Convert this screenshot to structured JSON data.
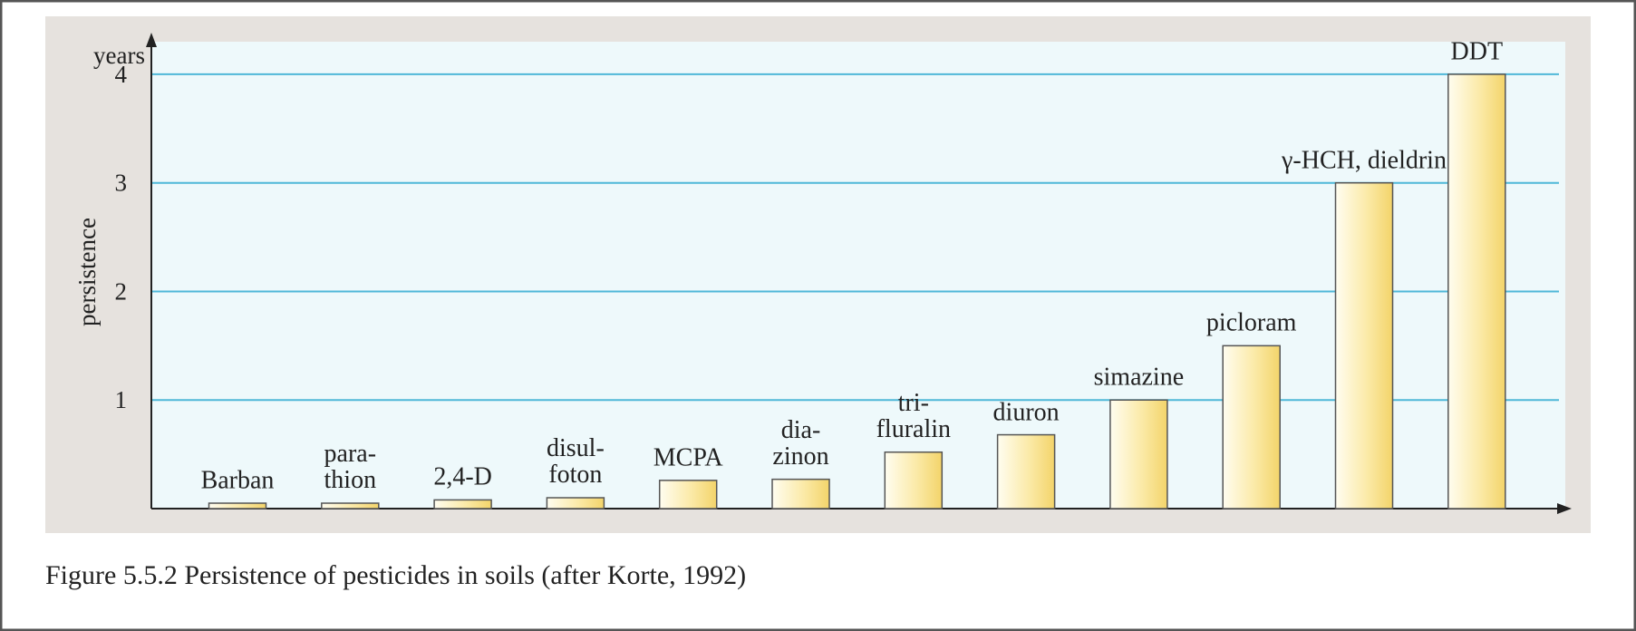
{
  "chart_data": {
    "type": "bar",
    "caption": "Figure 5.5.2 Persistence of pesticides in soils (after Korte, 1992)",
    "y_label": "persistence",
    "y_unit": "years",
    "categories": [
      "Barban",
      "para-\nthion",
      "2,4-D",
      "disul-\nfoton",
      "MCPA",
      "dia-\nzinon",
      "tri-\nfluralin",
      "diuron",
      "simazine",
      "picloram",
      "γ-HCH, dieldrin",
      "DDT"
    ],
    "values": [
      0.05,
      0.05,
      0.08,
      0.1,
      0.26,
      0.27,
      0.52,
      0.68,
      1.0,
      1.5,
      3.0,
      4.0
    ],
    "ylim": [
      0,
      4.3
    ],
    "yticks": [
      1,
      2,
      3,
      4
    ],
    "grid": true,
    "grid_color": "#4fb8d8",
    "color": "#f3d46a"
  }
}
